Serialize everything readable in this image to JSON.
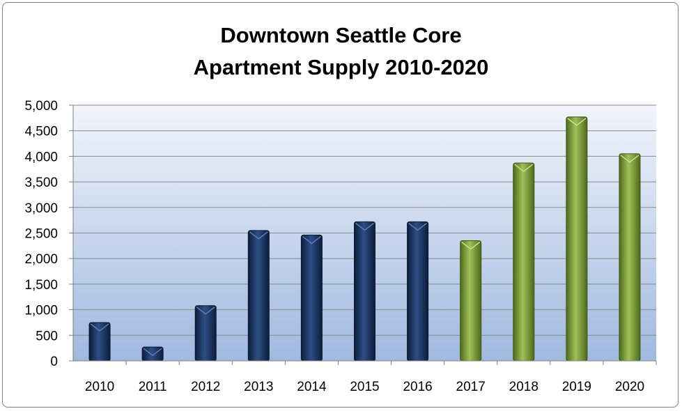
{
  "chart_data": {
    "type": "bar",
    "title_lines": [
      "Downtown Seattle Core",
      "Apartment Supply 2010-2020"
    ],
    "categories": [
      "2010",
      "2011",
      "2012",
      "2013",
      "2014",
      "2015",
      "2016",
      "2017",
      "2018",
      "2019",
      "2020"
    ],
    "values": [
      750,
      270,
      1080,
      2550,
      2460,
      2720,
      2720,
      2350,
      3870,
      4770,
      4050
    ],
    "ylim": [
      0,
      5000
    ],
    "yticks": [
      0,
      500,
      1000,
      1500,
      2000,
      2500,
      3000,
      3500,
      4000,
      4500,
      5000
    ],
    "ytick_labels": [
      "0",
      "500",
      "1,000",
      "1,500",
      "2,000",
      "2,500",
      "3,000",
      "3,500",
      "4,000",
      "4,500",
      "5,000"
    ],
    "grid": true,
    "bar_colors": [
      "#1c3660",
      "#1c3660",
      "#1c3660",
      "#1c3660",
      "#1c3660",
      "#1c3660",
      "#1c3660",
      "#7a9a34",
      "#7a9a34",
      "#7a9a34",
      "#7a9a34"
    ]
  }
}
